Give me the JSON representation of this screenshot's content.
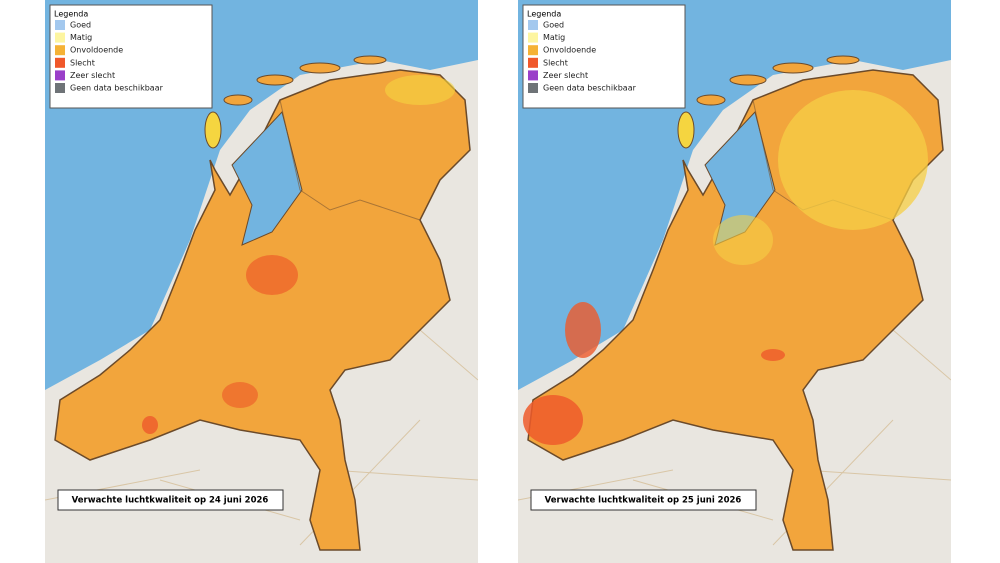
{
  "panels": [
    {
      "legend": {
        "title": "Legenda",
        "items": [
          {
            "label": "Goed",
            "color": "#a3c8ee"
          },
          {
            "label": "Matig",
            "color": "#fdf5a0"
          },
          {
            "label": "Onvoldoende",
            "color": "#f5b235"
          },
          {
            "label": "Slecht",
            "color": "#f0582a"
          },
          {
            "label": "Zeer slecht",
            "color": "#9a3fc9"
          },
          {
            "label": "Geen data beschikbaar",
            "color": "#6e7377"
          }
        ]
      },
      "caption": "Verwachte luchtkwaliteit op 24 juni 2026"
    },
    {
      "legend": {
        "title": "Legenda",
        "items": [
          {
            "label": "Goed",
            "color": "#a3c8ee"
          },
          {
            "label": "Matig",
            "color": "#fdf5a0"
          },
          {
            "label": "Onvoldoende",
            "color": "#f5b235"
          },
          {
            "label": "Slecht",
            "color": "#f0582a"
          },
          {
            "label": "Zeer slecht",
            "color": "#9a3fc9"
          },
          {
            "label": "Geen data beschikbaar",
            "color": "#6e7377"
          }
        ]
      },
      "caption": "Verwachte luchtkwaliteit op 25 juni 2026"
    }
  ]
}
